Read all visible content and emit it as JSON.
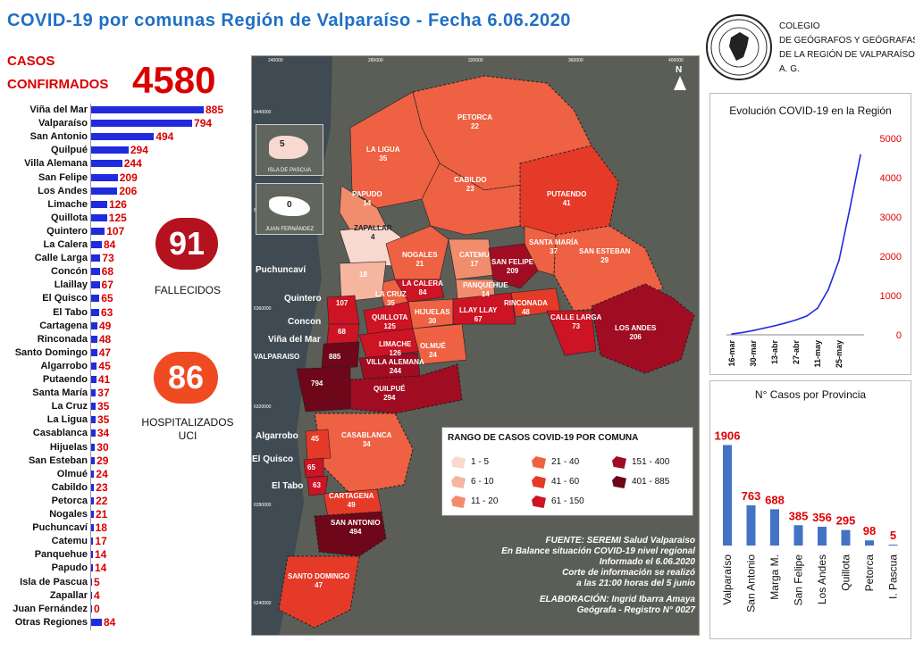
{
  "title": "COVID-19 por comunas Región de Valparaíso - Fecha 6.06.2020",
  "cases": {
    "label_line1": "CASOS",
    "label_line2": "CONFIRMADOS",
    "total": "4580"
  },
  "deaths": {
    "value": "91",
    "label": "FALLECIDOS",
    "color": "#b3121e"
  },
  "hospitalized": {
    "value": "86",
    "label_line1": "HOSPITALIZADOS",
    "label_line2": "UCI",
    "color": "#ef4a22"
  },
  "organization": {
    "line1": "COLEGIO",
    "line2": "DE GEÓGRAFOS Y GEÓGRAFAS",
    "line3": "DE LA REGIÓN DE VALPARAÍSO",
    "line4": "A. G.",
    "logo_icon": "region-map-seal-icon"
  },
  "chart_data": [
    {
      "type": "bar",
      "orientation": "horizontal",
      "bar_color": "#1f2bdc",
      "value_color": "#d80000",
      "categories": [
        "Viña del Mar",
        "Valparaíso",
        "San Antonio",
        "Quilpué",
        "Villa Alemana",
        "San Felipe",
        "Los Andes",
        "Limache",
        "Quillota",
        "Quintero",
        "La Calera",
        "Calle Larga",
        "Concón",
        "Llaillay",
        "El Quisco",
        "El Tabo",
        "Cartagena",
        "Rinconada",
        "Santo Domingo",
        "Algarrobo",
        "Putaendo",
        "Santa María",
        "La Cruz",
        "La Ligua",
        "Casablanca",
        "Hijuelas",
        "San Esteban",
        "Olmué",
        "Cabildo",
        "Petorca",
        "Nogales",
        "Puchuncaví",
        "Catemu",
        "Panquehue",
        "Papudo",
        "Isla de Pascua",
        "Zapallar",
        "Juan Fernández",
        "Otras Regiones"
      ],
      "values": [
        885,
        794,
        494,
        294,
        244,
        209,
        206,
        126,
        125,
        107,
        84,
        73,
        68,
        67,
        65,
        63,
        49,
        48,
        47,
        45,
        41,
        37,
        35,
        35,
        34,
        30,
        29,
        24,
        23,
        22,
        21,
        18,
        17,
        14,
        14,
        5,
        4,
        0,
        84
      ]
    },
    {
      "type": "line",
      "title": "Evolución COVID-19 en la Región",
      "line_color": "#1f2bdc",
      "tick_color": "#e00000",
      "x_ticks": [
        "16-mar",
        "30-mar",
        "13-abr",
        "27-abr",
        "11-may",
        "25-may"
      ],
      "y_ticks": [
        0,
        1000,
        2000,
        3000,
        4000,
        5000
      ],
      "ylim": [
        0,
        5000
      ],
      "x": [
        "16-mar",
        "23-mar",
        "30-mar",
        "06-abr",
        "13-abr",
        "20-abr",
        "27-abr",
        "04-may",
        "11-may",
        "18-may",
        "25-may",
        "01-jun",
        "06-jun"
      ],
      "values": [
        20,
        60,
        110,
        170,
        230,
        300,
        380,
        480,
        680,
        1150,
        1900,
        3200,
        4580
      ]
    },
    {
      "type": "bar",
      "title": "N° Casos por Provincia",
      "bar_color": "#4472c4",
      "value_color": "#e00000",
      "categories": [
        "Valparaíso",
        "San Antonio",
        "Marga M.",
        "San Felipe",
        "Los Andes",
        "Quillota",
        "Petorca",
        "I. Pascua"
      ],
      "values": [
        1906,
        763,
        688,
        385,
        356,
        295,
        98,
        5
      ],
      "ylim": [
        0,
        2100
      ]
    }
  ],
  "map": {
    "communes": [
      {
        "name": "PETORCA",
        "value": "22"
      },
      {
        "name": "LA LIGUA",
        "value": "35"
      },
      {
        "name": "CABILDO",
        "value": "23"
      },
      {
        "name": "PAPUDO",
        "value": "14"
      },
      {
        "name": "ZAPALLAR",
        "value": "4"
      },
      {
        "name": "PUTAENDO",
        "value": "41"
      },
      {
        "name": "NOGALES",
        "value": "21"
      },
      {
        "name": "CATEMU",
        "value": "17"
      },
      {
        "name": "SAN FELIPE",
        "value": "209"
      },
      {
        "name": "SANTA MARÍA",
        "value": "37"
      },
      {
        "name": "SAN ESTEBAN",
        "value": "29"
      },
      {
        "name": "LA CALERA",
        "value": "84"
      },
      {
        "name": "LA CRUZ",
        "value": "35"
      },
      {
        "name": "PANQUEHUE",
        "value": "14"
      },
      {
        "name": "QUILLOTA",
        "value": "125"
      },
      {
        "name": "HIJUELAS",
        "value": "30"
      },
      {
        "name": "LLAY LLAY",
        "value": "67"
      },
      {
        "name": "RINCONADA",
        "value": "48"
      },
      {
        "name": "CALLE LARGA",
        "value": "73"
      },
      {
        "name": "LOS ANDES",
        "value": "206"
      },
      {
        "name": "LIMACHE",
        "value": "126"
      },
      {
        "name": "VILLA ALEMANA",
        "value": "244"
      },
      {
        "name": "OLMUÉ",
        "value": "24"
      },
      {
        "name": "QUILPUÉ",
        "value": "294"
      },
      {
        "name": "CASABLANCA",
        "value": "34"
      },
      {
        "name": "CARTAGENA",
        "value": "49"
      },
      {
        "name": "SAN ANTONIO",
        "value": "494"
      },
      {
        "name": "SANTO DOMINGO",
        "value": "47"
      }
    ],
    "unlabeled_values": {
      "puchuncavi": "18",
      "quintero": "107",
      "concon": "68",
      "vina": "885",
      "valparaiso": "794",
      "algarrobo": "45",
      "elquisco": "65",
      "eltabo": "63"
    },
    "side_labels": [
      "Puchuncaví",
      "Quintero",
      "Concon",
      "Viña del Mar",
      "VALPARAISO",
      "Algarrobo",
      "El Quisco",
      "El Tabo"
    ],
    "islands": [
      {
        "name": "ISLA DE PASCUA",
        "value": "5"
      },
      {
        "name": "JUAN FERNÁNDEZ",
        "value": "0"
      }
    ],
    "grid_x": [
      "240000",
      "280000",
      "320000",
      "360000",
      "400000"
    ],
    "grid_y": [
      "6440000",
      "6400000",
      "6360000",
      "6320000",
      "6280000",
      "6240000"
    ],
    "north_label": "N"
  },
  "legend": {
    "title": "RANGO DE CASOS COVID-19 POR COMUNA",
    "items": [
      {
        "label": "1 - 5",
        "color": "#f7d9cf"
      },
      {
        "label": "6 - 10",
        "color": "#f5b59e"
      },
      {
        "label": "11 - 20",
        "color": "#f18c6c"
      },
      {
        "label": "21 - 40",
        "color": "#ee6142"
      },
      {
        "label": "41 - 60",
        "color": "#e63a28"
      },
      {
        "label": "61 - 150",
        "color": "#cc1424"
      },
      {
        "label": "151 - 400",
        "color": "#a00c22"
      },
      {
        "label": "401 - 885",
        "color": "#6e0719"
      }
    ]
  },
  "source": {
    "line1": "FUENTE: SEREMI Salud Valparaiso",
    "line2": "En Balance situación COVID-19 nivel regional",
    "line3": "Informado el 6.06.2020",
    "line4": "Corte de información se realizó",
    "line5": "a las 21:00 horas del 5 junio",
    "line6": "ELABORACIÓN: Ingrid Ibarra Amaya",
    "line7": "Geógrafa - Registro N° 0027"
  }
}
